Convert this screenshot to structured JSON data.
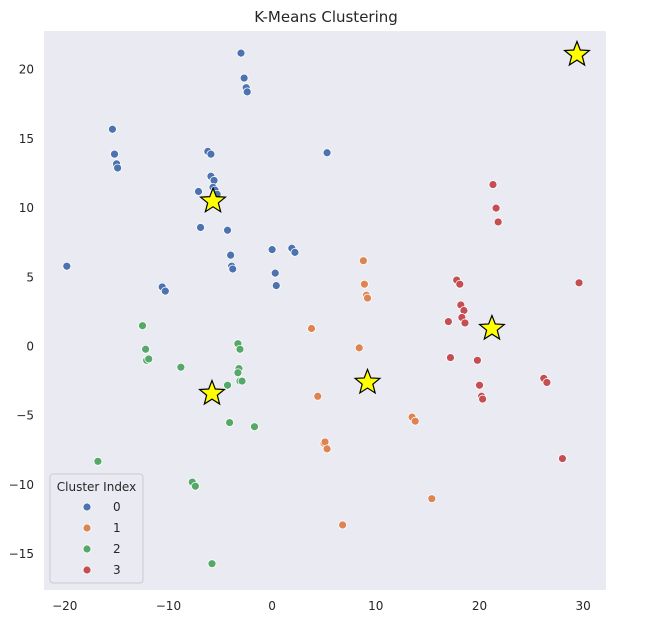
{
  "chart_data": {
    "type": "scatter",
    "title": "K-Means Clustering",
    "xlabel": "",
    "ylabel": "",
    "xlim": [
      -22,
      32.2
    ],
    "ylim": [
      -17.6,
      22.8
    ],
    "xticks": [
      -20,
      -10,
      0,
      10,
      20,
      30
    ],
    "yticks": [
      -15,
      -10,
      -5,
      0,
      5,
      10,
      15,
      20
    ],
    "grid": false,
    "background": "#eaeaf2",
    "legend": {
      "title": "Cluster Index",
      "placement": "bottom-left"
    },
    "series": [
      {
        "name": "0",
        "color": "#4c72b0",
        "points": [
          [
            -3.0,
            21.2
          ],
          [
            -2.7,
            19.4
          ],
          [
            -2.5,
            18.7
          ],
          [
            -2.4,
            18.4
          ],
          [
            -15.4,
            15.7
          ],
          [
            -15.2,
            13.9
          ],
          [
            -15.0,
            13.2
          ],
          [
            -14.9,
            12.9
          ],
          [
            -6.2,
            14.1
          ],
          [
            -5.9,
            13.9
          ],
          [
            5.3,
            14.0
          ],
          [
            -5.9,
            12.3
          ],
          [
            -5.6,
            12.0
          ],
          [
            -5.7,
            11.5
          ],
          [
            -5.5,
            11.3
          ],
          [
            -5.3,
            11.0
          ],
          [
            -7.1,
            11.2
          ],
          [
            -6.9,
            8.6
          ],
          [
            -4.3,
            8.4
          ],
          [
            0.0,
            7.0
          ],
          [
            1.9,
            7.1
          ],
          [
            2.2,
            6.8
          ],
          [
            -4.0,
            6.6
          ],
          [
            -3.9,
            5.8
          ],
          [
            -3.8,
            5.6
          ],
          [
            -19.8,
            5.8
          ],
          [
            0.3,
            5.3
          ],
          [
            0.4,
            4.4
          ],
          [
            -10.6,
            4.3
          ],
          [
            -10.3,
            4.0
          ]
        ]
      },
      {
        "name": "1",
        "color": "#dd8452",
        "points": [
          [
            8.8,
            6.2
          ],
          [
            8.9,
            4.5
          ],
          [
            9.1,
            3.7
          ],
          [
            9.2,
            3.5
          ],
          [
            3.8,
            1.3
          ],
          [
            8.4,
            -0.1
          ],
          [
            4.4,
            -3.6
          ],
          [
            13.5,
            -5.1
          ],
          [
            13.8,
            -5.4
          ],
          [
            5.0,
            -7.0
          ],
          [
            5.1,
            -6.9
          ],
          [
            5.3,
            -7.4
          ],
          [
            15.4,
            -11.0
          ],
          [
            6.8,
            -12.9
          ]
        ]
      },
      {
        "name": "2",
        "color": "#55a868",
        "points": [
          [
            -12.5,
            1.5
          ],
          [
            -3.3,
            0.2
          ],
          [
            -3.1,
            -0.2
          ],
          [
            -12.2,
            -0.2
          ],
          [
            -12.1,
            -1.0
          ],
          [
            -11.9,
            -0.9
          ],
          [
            -8.8,
            -1.5
          ],
          [
            -3.2,
            -1.6
          ],
          [
            -3.3,
            -1.9
          ],
          [
            -3.1,
            -2.5
          ],
          [
            -2.9,
            -2.5
          ],
          [
            -4.3,
            -2.8
          ],
          [
            -4.1,
            -5.5
          ],
          [
            -1.7,
            -5.8
          ],
          [
            -16.8,
            -8.3
          ],
          [
            -7.7,
            -9.8
          ],
          [
            -7.4,
            -10.1
          ],
          [
            -5.8,
            -15.7
          ]
        ]
      },
      {
        "name": "3",
        "color": "#c44e52",
        "points": [
          [
            21.3,
            11.7
          ],
          [
            21.6,
            10.0
          ],
          [
            21.8,
            9.0
          ],
          [
            17.8,
            4.8
          ],
          [
            18.1,
            4.5
          ],
          [
            29.6,
            4.6
          ],
          [
            18.2,
            3.0
          ],
          [
            18.5,
            2.6
          ],
          [
            18.3,
            2.1
          ],
          [
            18.6,
            1.7
          ],
          [
            17.0,
            1.8
          ],
          [
            17.2,
            -0.8
          ],
          [
            19.8,
            -1.0
          ],
          [
            26.2,
            -2.3
          ],
          [
            26.5,
            -2.6
          ],
          [
            20.0,
            -2.8
          ],
          [
            20.2,
            -3.6
          ],
          [
            20.3,
            -3.8
          ],
          [
            28.0,
            -8.1
          ]
        ]
      }
    ],
    "centroids": {
      "color": "#ffff00",
      "edge_color": "#000000",
      "points": [
        [
          -5.7,
          10.5
        ],
        [
          -5.8,
          -3.4
        ],
        [
          9.2,
          -2.6
        ],
        [
          21.2,
          1.3
        ],
        [
          29.4,
          21.1
        ]
      ]
    }
  }
}
